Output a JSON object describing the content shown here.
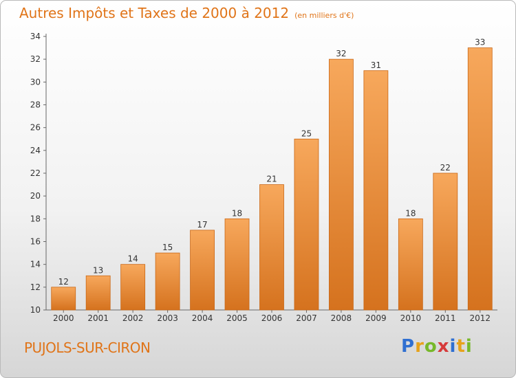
{
  "header": {
    "title": "Autres Impôts et Taxes de 2000 à 2012",
    "subtitle": "(en milliers d'€)"
  },
  "footer": {
    "town": "PUJOLS-SUR-CIRON",
    "logo_letters": [
      "P",
      "r",
      "o",
      "x",
      "i",
      "t",
      "i"
    ],
    "logo_colors": [
      "#2f6fd1",
      "#e7a21b",
      "#77b82a",
      "#d63a3a",
      "#2f6fd1",
      "#e7a21b",
      "#77b82a"
    ]
  },
  "colors": {
    "accent": "#e07418",
    "bar_top": "#f7a85c",
    "bar_bottom": "#d5721e",
    "bar_edge": "#c96716"
  },
  "chart_data": {
    "type": "bar",
    "title": "Autres Impôts et Taxes de 2000 à 2012",
    "subtitle": "(en milliers d'€)",
    "categories": [
      "2000",
      "2001",
      "2002",
      "2003",
      "2004",
      "2005",
      "2006",
      "2007",
      "2008",
      "2009",
      "2010",
      "2011",
      "2012"
    ],
    "values": [
      12,
      13,
      14,
      15,
      17,
      18,
      21,
      25,
      32,
      31,
      18,
      22,
      33
    ],
    "ylim": [
      10,
      34
    ],
    "yticks": [
      10,
      12,
      14,
      16,
      18,
      20,
      22,
      24,
      26,
      28,
      30,
      32,
      34
    ],
    "grid": false,
    "legend": "none"
  }
}
